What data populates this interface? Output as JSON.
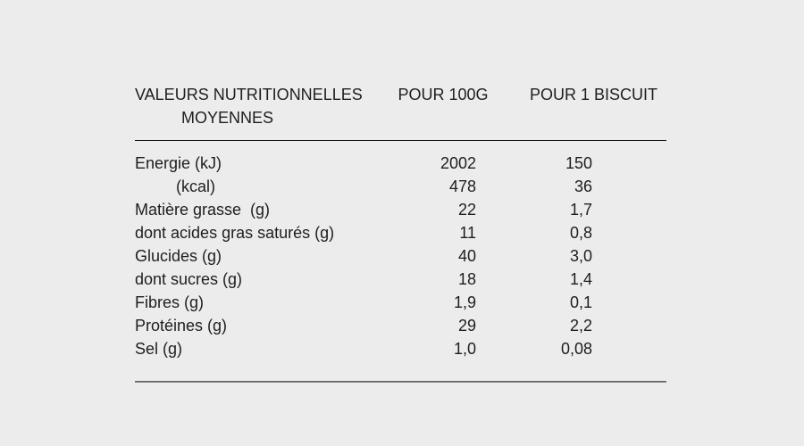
{
  "page": {
    "background_color": "#ececec",
    "text_color": "#1e1e1e",
    "top_rule_color": "#161616",
    "bottom_rule_color": "#6e6e6e"
  },
  "table": {
    "header": {
      "col1_line1": "VALEURS NUTRITIONNELLES",
      "col1_line2": "MOYENNES",
      "col2": "POUR 100G",
      "col3": "POUR 1 BISCUIT"
    },
    "rows": [
      {
        "label": "Energie (kJ)",
        "per_100g": "2002",
        "per_biscuit": "150",
        "indent": false
      },
      {
        "label": "(kcal)",
        "per_100g": "478",
        "per_biscuit": "36",
        "indent": true
      },
      {
        "label": "Matière grasse  (g)",
        "per_100g": "22",
        "per_biscuit": "1,7",
        "indent": false
      },
      {
        "label": "dont acides gras saturés (g)",
        "per_100g": "11",
        "per_biscuit": "0,8",
        "indent": false
      },
      {
        "label": "Glucides (g)",
        "per_100g": "40",
        "per_biscuit": "3,0",
        "indent": false
      },
      {
        "label": "dont sucres (g)",
        "per_100g": "18",
        "per_biscuit": "1,4",
        "indent": false
      },
      {
        "label": "Fibres (g)",
        "per_100g": "1,9",
        "per_biscuit": "0,1",
        "indent": false
      },
      {
        "label": "Protéines (g)",
        "per_100g": "29",
        "per_biscuit": "2,2",
        "indent": false
      },
      {
        "label": "Sel (g)",
        "per_100g": "1,0",
        "per_biscuit": "0,08",
        "indent": false
      }
    ]
  }
}
